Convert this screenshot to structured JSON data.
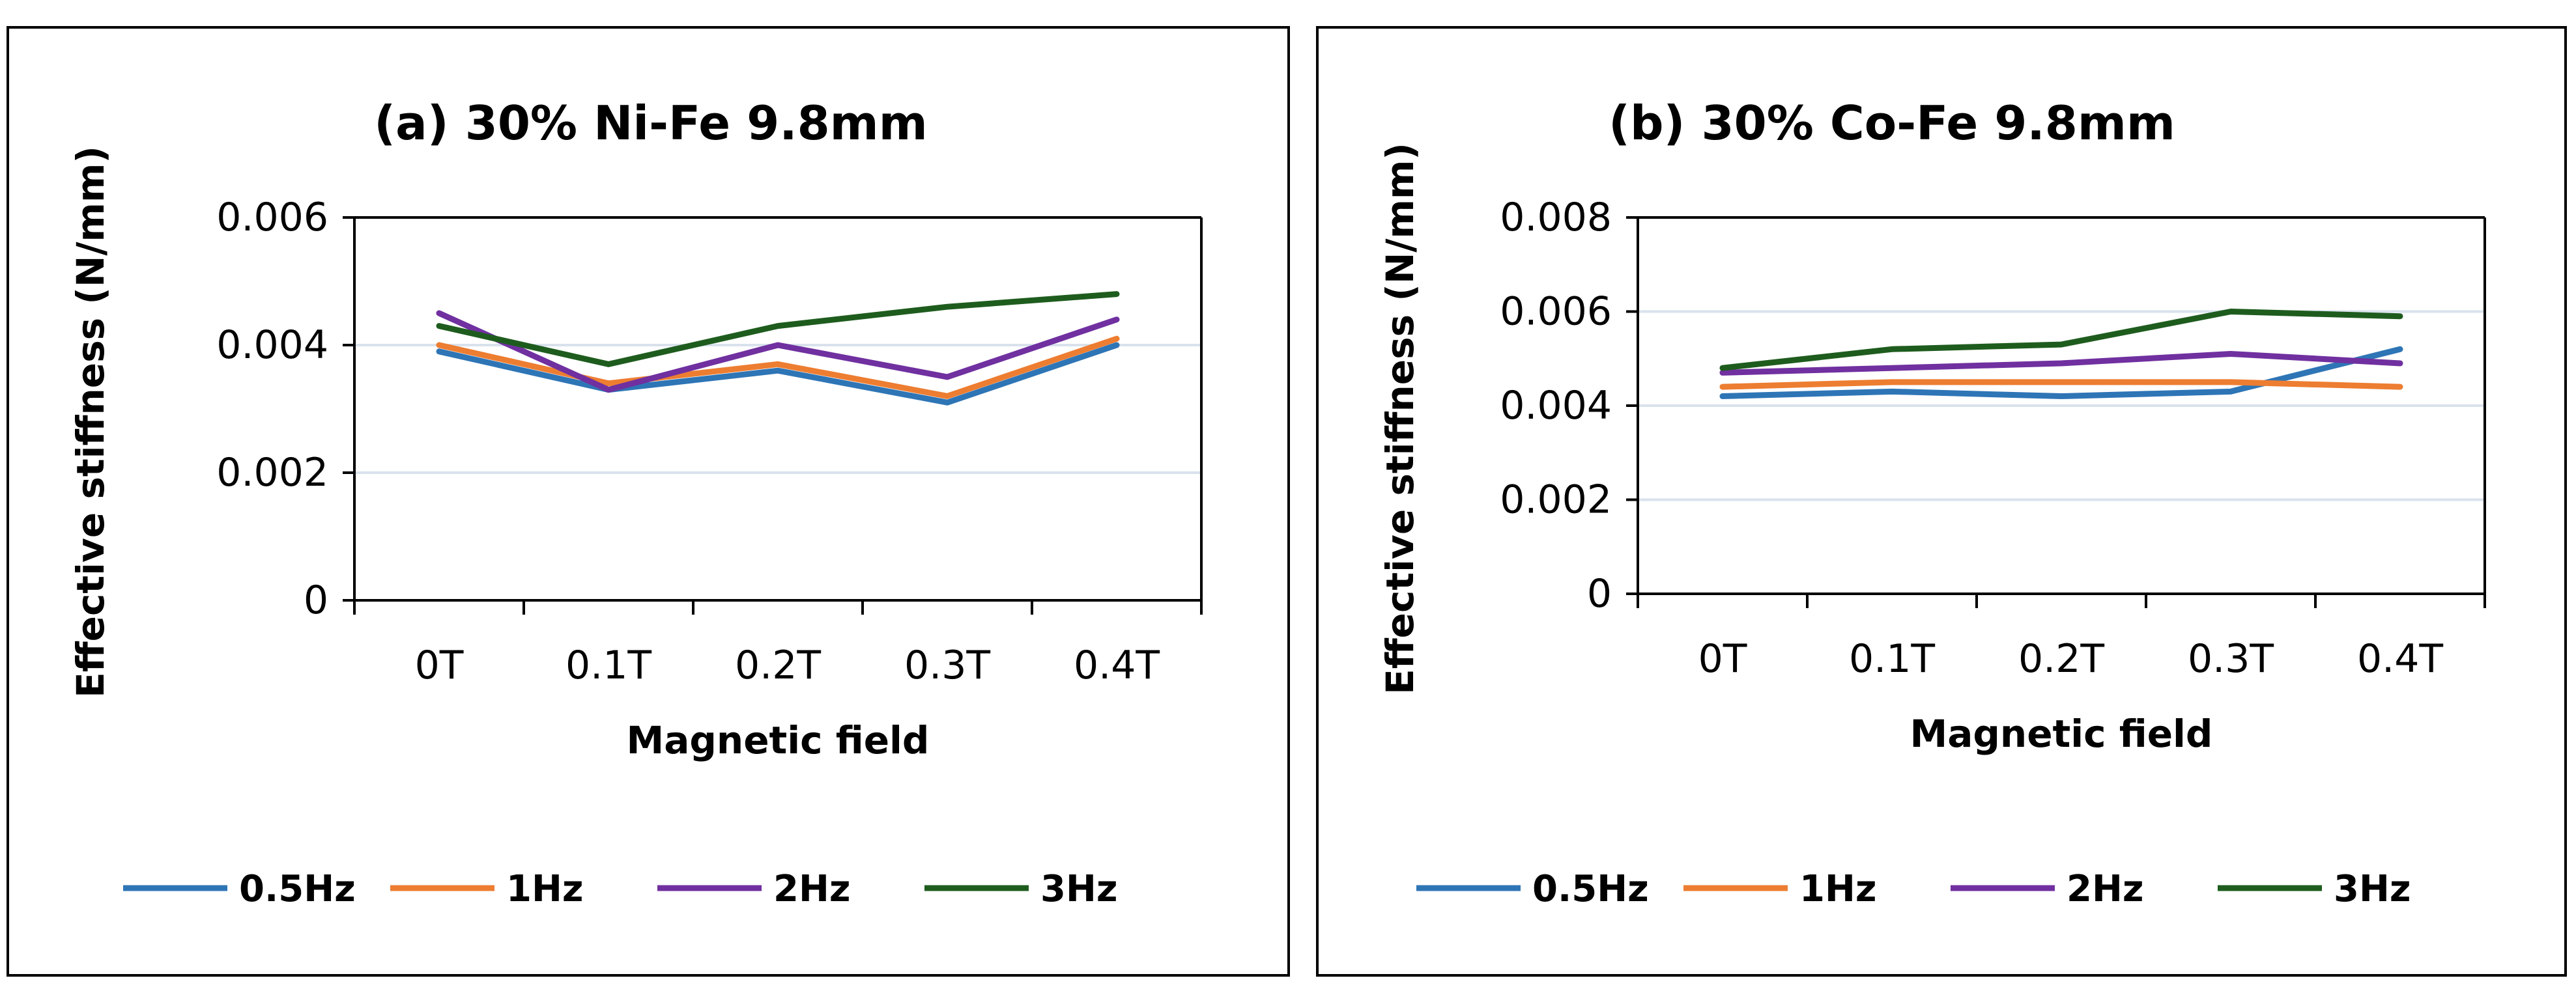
{
  "chart_data": [
    {
      "type": "line",
      "title": "(a) 30% Ni-Fe 9.8mm",
      "xlabel": "Magnetic field",
      "ylabel": "Effective stiffness (N/mm)",
      "categories": [
        "0T",
        "0.1T",
        "0.2T",
        "0.3T",
        "0.4T"
      ],
      "ylim": [
        0,
        0.006
      ],
      "yticks": [
        0,
        0.002,
        0.004,
        0.006
      ],
      "ytick_labels": [
        "0",
        "0.002",
        "0.004",
        "0.006"
      ],
      "grid": true,
      "legend_position": "bottom",
      "series": [
        {
          "name": "0.5Hz",
          "color": "#2E75B6",
          "values": [
            0.0039,
            0.0033,
            0.0036,
            0.0031,
            0.004
          ]
        },
        {
          "name": "1Hz",
          "color": "#ED7D31",
          "values": [
            0.004,
            0.0034,
            0.0037,
            0.0032,
            0.0041
          ]
        },
        {
          "name": "2Hz",
          "color": "#7030A0",
          "values": [
            0.0045,
            0.0033,
            0.004,
            0.0035,
            0.0044
          ]
        },
        {
          "name": "3Hz",
          "color": "#1E5C1E",
          "values": [
            0.0043,
            0.0037,
            0.0043,
            0.0046,
            0.0048
          ]
        }
      ]
    },
    {
      "type": "line",
      "title": "(b) 30% Co-Fe 9.8mm",
      "xlabel": "Magnetic field",
      "ylabel": "Effective stiffness (N/mm)",
      "categories": [
        "0T",
        "0.1T",
        "0.2T",
        "0.3T",
        "0.4T"
      ],
      "ylim": [
        0,
        0.008
      ],
      "yticks": [
        0,
        0.002,
        0.004,
        0.006,
        0.008
      ],
      "ytick_labels": [
        "0",
        "0.002",
        "0.004",
        "0.006",
        "0.008"
      ],
      "grid": true,
      "legend_position": "bottom",
      "series": [
        {
          "name": "0.5Hz",
          "color": "#2E75B6",
          "values": [
            0.0042,
            0.0043,
            0.0042,
            0.0043,
            0.0052
          ]
        },
        {
          "name": "1Hz",
          "color": "#ED7D31",
          "values": [
            0.0044,
            0.0045,
            0.0045,
            0.0045,
            0.0044
          ]
        },
        {
          "name": "2Hz",
          "color": "#7030A0",
          "values": [
            0.0047,
            0.0048,
            0.0049,
            0.0051,
            0.0049
          ]
        },
        {
          "name": "3Hz",
          "color": "#1E5C1E",
          "values": [
            0.0048,
            0.0052,
            0.0053,
            0.006,
            0.0059
          ]
        }
      ]
    }
  ]
}
